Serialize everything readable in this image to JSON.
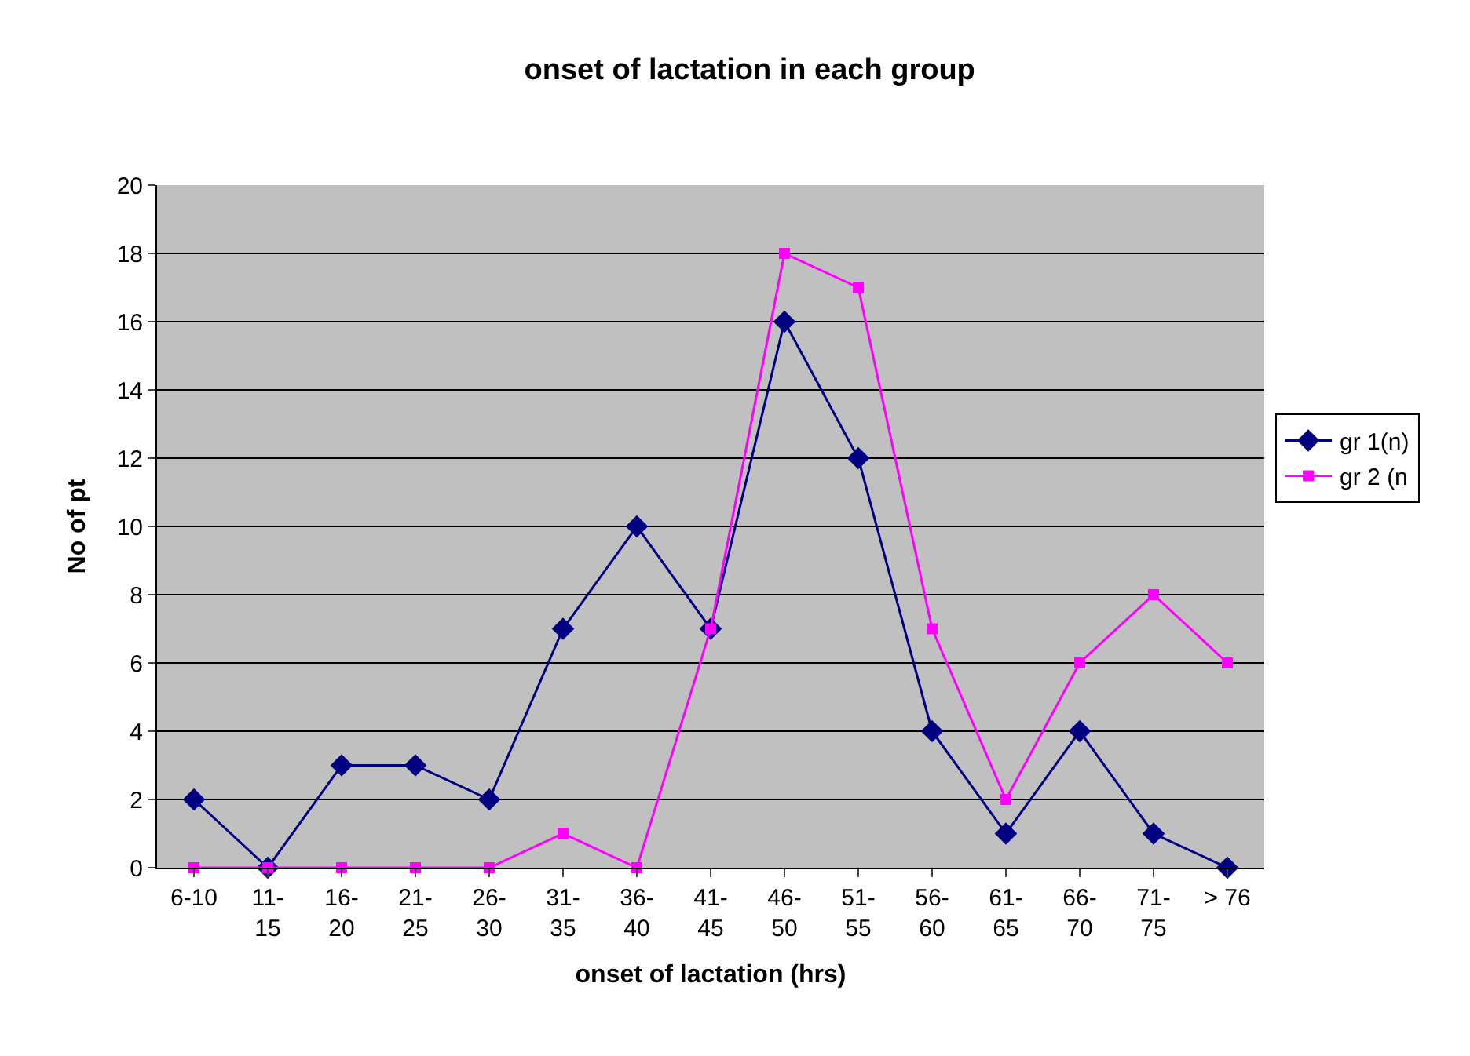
{
  "chart_data": {
    "type": "line",
    "title": "onset of lactation in each group",
    "xlabel": "onset of lactation (hrs)",
    "ylabel": "No of pt",
    "categories": [
      "6-10",
      "11-\n15",
      "16-\n20",
      "21-\n25",
      "26-\n30",
      "31-\n35",
      "36-\n40",
      "41-\n45",
      "46-\n50",
      "51-\n55",
      "56-\n60",
      "61-\n65",
      "66-\n70",
      "71-\n75",
      "> 76"
    ],
    "series": [
      {
        "name": "gr 1(n)",
        "color": "#000080",
        "marker": "diamond",
        "values": [
          2,
          0,
          3,
          3,
          2,
          7,
          10,
          7,
          16,
          12,
          4,
          1,
          4,
          1,
          0
        ]
      },
      {
        "name": "gr 2 (n",
        "color": "#ff00ff",
        "marker": "square",
        "values": [
          0,
          0,
          0,
          0,
          0,
          1,
          0,
          7,
          18,
          17,
          7,
          2,
          6,
          8,
          6
        ]
      }
    ],
    "ylim": [
      0,
      20
    ],
    "yticks": [
      0,
      2,
      4,
      6,
      8,
      10,
      12,
      14,
      16,
      18,
      20
    ],
    "grid": "y",
    "legend": "right",
    "line_style": "solid"
  }
}
